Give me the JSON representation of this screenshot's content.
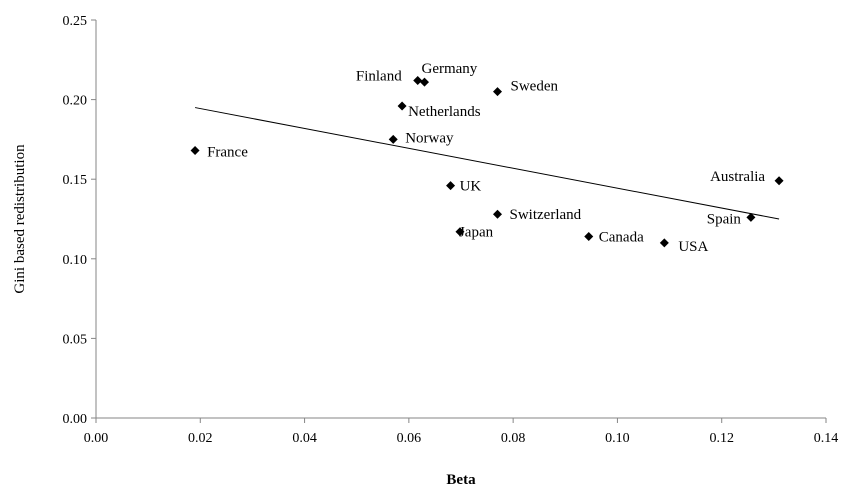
{
  "chart_data": {
    "type": "scatter",
    "xlabel": "Beta",
    "ylabel": "Gini based redistribution",
    "xlim": [
      0,
      0.14
    ],
    "ylim": [
      0,
      0.25
    ],
    "x_ticks": [
      "0.00",
      "0.02",
      "0.04",
      "0.06",
      "0.08",
      "0.10",
      "0.12",
      "0.14"
    ],
    "y_ticks": [
      "0.00",
      "0.05",
      "0.10",
      "0.15",
      "0.20",
      "0.25"
    ],
    "grid": false,
    "marker": "diamond",
    "points": [
      {
        "label": "France",
        "x": 0.019,
        "y": 0.168
      },
      {
        "label": "Finland",
        "x": 0.0617,
        "y": 0.212
      },
      {
        "label": "Germany",
        "x": 0.063,
        "y": 0.211
      },
      {
        "label": "Sweden",
        "x": 0.077,
        "y": 0.205
      },
      {
        "label": "Netherlands",
        "x": 0.0587,
        "y": 0.196
      },
      {
        "label": "Norway",
        "x": 0.057,
        "y": 0.175
      },
      {
        "label": "UK",
        "x": 0.068,
        "y": 0.146
      },
      {
        "label": "Switzerland",
        "x": 0.077,
        "y": 0.128
      },
      {
        "label": "Japan",
        "x": 0.0698,
        "y": 0.117
      },
      {
        "label": "Canada",
        "x": 0.0945,
        "y": 0.114
      },
      {
        "label": "USA",
        "x": 0.109,
        "y": 0.11
      },
      {
        "label": "Australia",
        "x": 0.131,
        "y": 0.149
      },
      {
        "label": "Spain",
        "x": 0.1256,
        "y": 0.126
      }
    ],
    "trendline": {
      "x": [
        0.019,
        0.131
      ],
      "y": [
        0.195,
        0.125
      ]
    }
  }
}
